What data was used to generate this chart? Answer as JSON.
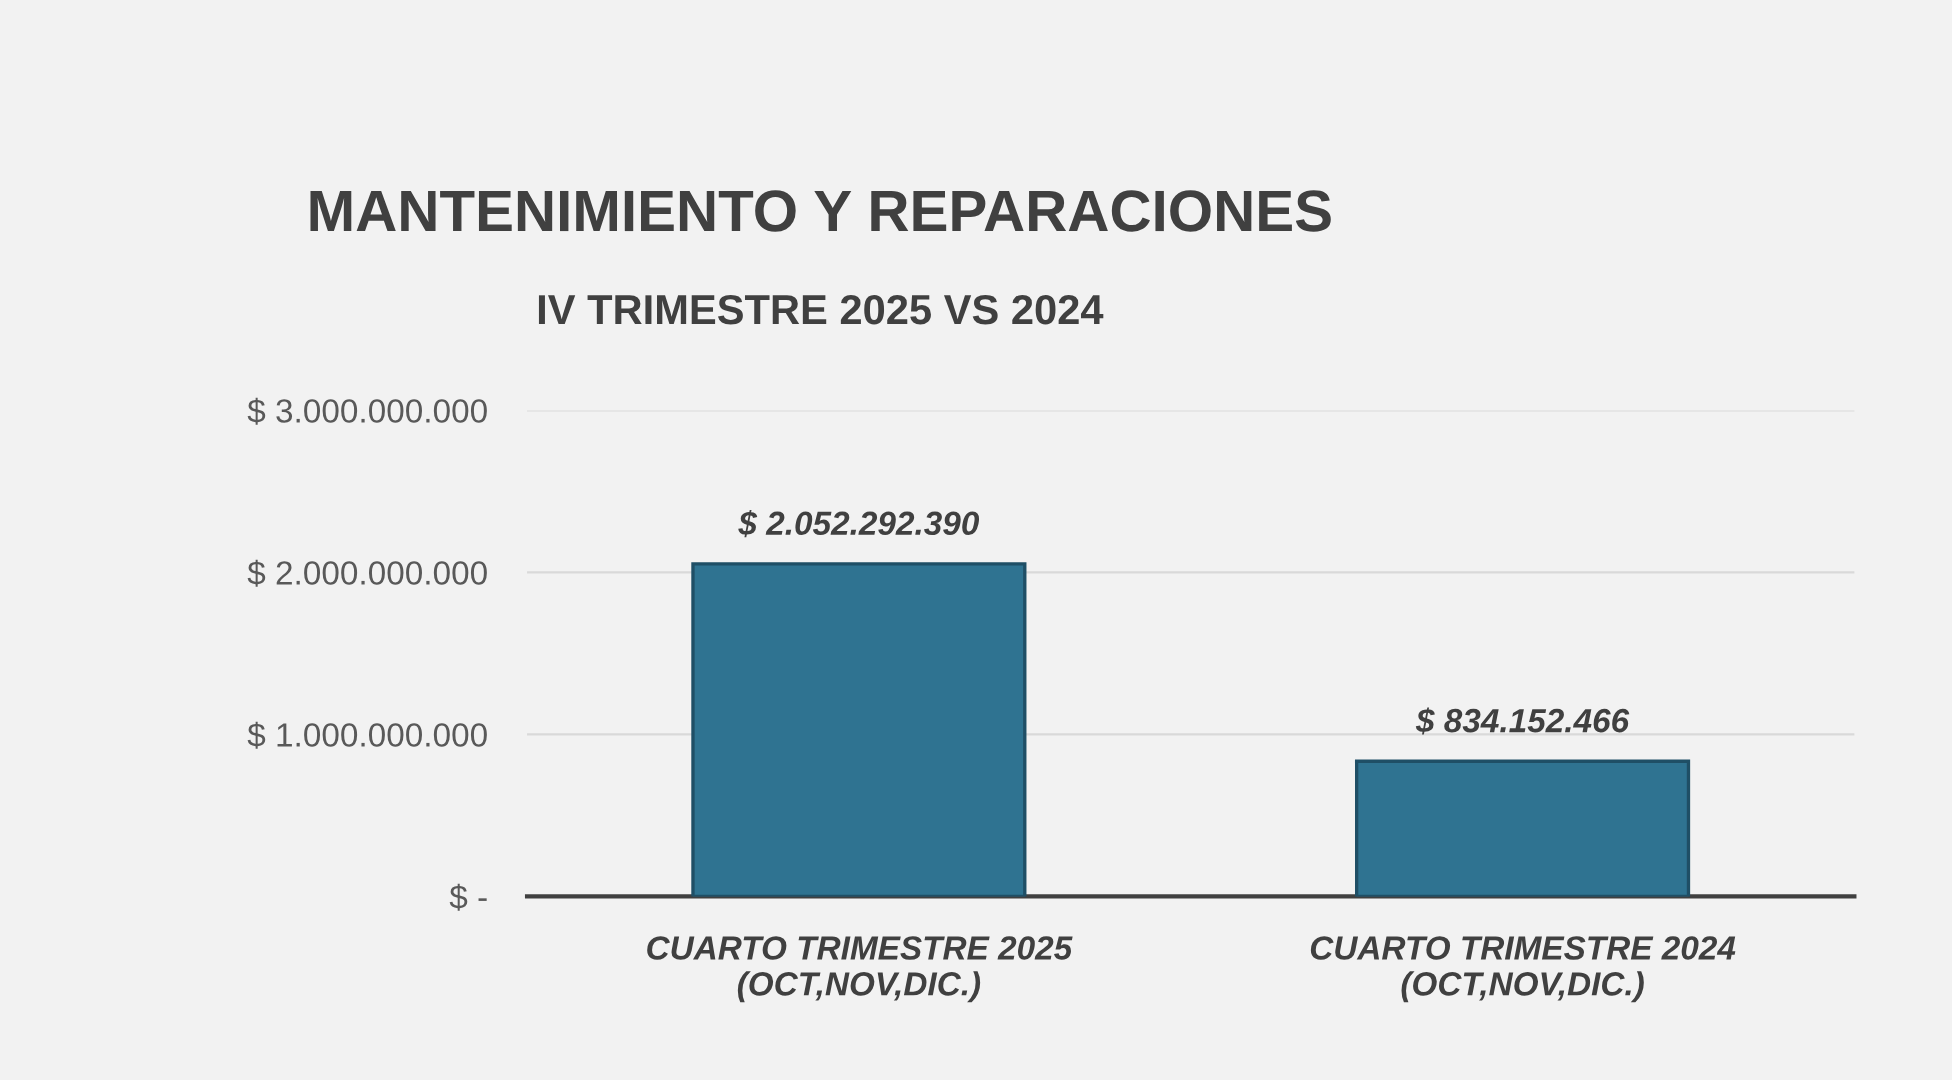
{
  "chart_data": {
    "type": "bar",
    "title": "MANTENIMIENTO Y REPARACIONES",
    "subtitle": "IV TRIMESTRE 2025 VS 2024",
    "categories": [
      "CUARTO TRIMESTRE 2025\n(OCT,NOV,DIC.)",
      "CUARTO TRIMESTRE 2024\n(OCT,NOV,DIC.)"
    ],
    "values": [
      2052292390,
      834152466
    ],
    "value_labels": [
      "$ 2.052.292.390",
      "$ 834.152.466"
    ],
    "color": "#2f7391",
    "ylim": [
      0,
      3000000000
    ],
    "yticks": [
      {
        "value": 0,
        "label": "$ -"
      },
      {
        "value": 1000000000,
        "label": "$ 1.000.000.000"
      },
      {
        "value": 2000000000,
        "label": "$ 2.000.000.000"
      },
      {
        "value": 3000000000,
        "label": "$ 3.000.000.000"
      }
    ],
    "grid": "y"
  }
}
